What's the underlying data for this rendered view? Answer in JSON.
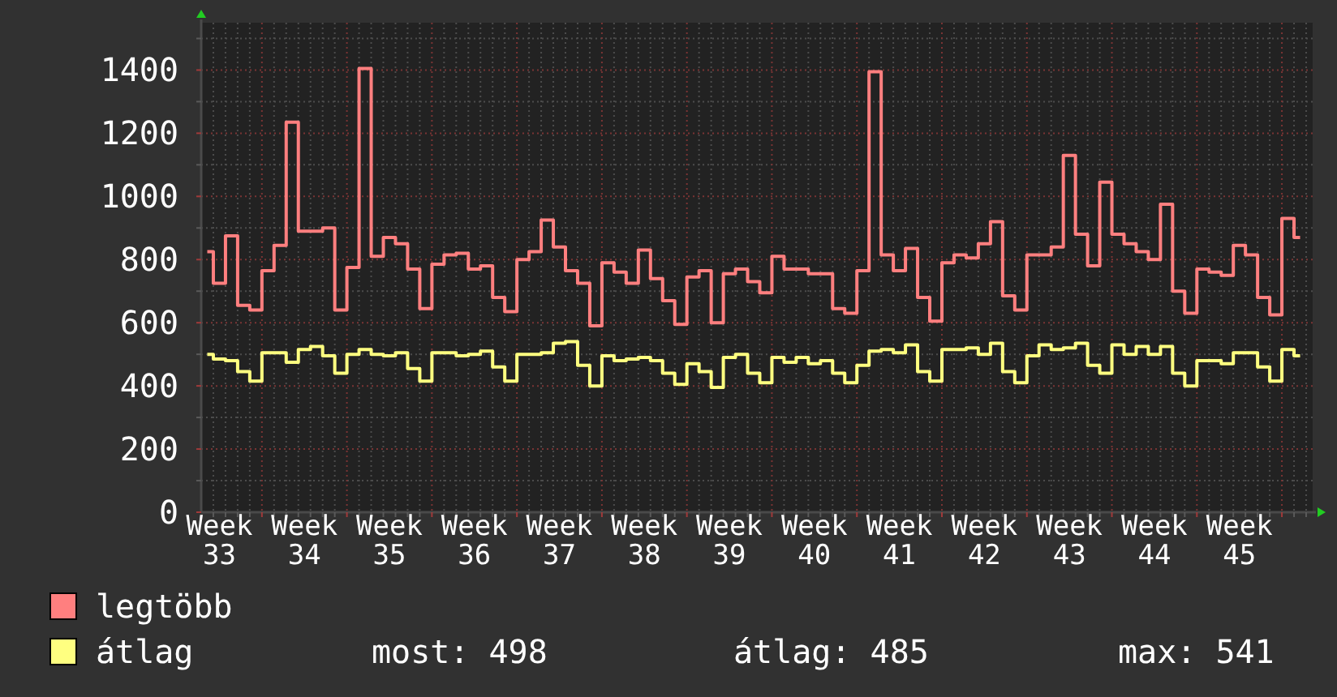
{
  "chart_data": {
    "type": "step",
    "ylim": [
      0,
      1550
    ],
    "categories": [
      null,
      "Week 33",
      null,
      null,
      null,
      null,
      null,
      null,
      "Week 34",
      null,
      null,
      null,
      null,
      null,
      null,
      "Week 35",
      null,
      null,
      null,
      null,
      null,
      null,
      "Week 36",
      null,
      null,
      null,
      null,
      null,
      null,
      "Week 37",
      null,
      null,
      null,
      null,
      null,
      null,
      "Week 38",
      null,
      null,
      null,
      null,
      null,
      null,
      "Week 39",
      null,
      null,
      null,
      null,
      null,
      null,
      "Week 40",
      null,
      null,
      null,
      null,
      null,
      null,
      "Week 41",
      null,
      null,
      null,
      null,
      null,
      null,
      "Week 42",
      null,
      null,
      null,
      null,
      null,
      null,
      "Week 43",
      null,
      null,
      null,
      null,
      null,
      null,
      "Week 44",
      null,
      null,
      null,
      null,
      null,
      null,
      "Week 45",
      null,
      null,
      null,
      null,
      null
    ],
    "yticks": [
      0,
      {
        "value": 100,
        "label": null
      },
      200,
      {
        "value": 300,
        "label": null
      },
      400,
      {
        "value": 500,
        "label": null
      },
      600,
      {
        "value": 700,
        "label": null
      },
      800,
      {
        "value": 900,
        "label": null
      },
      1000,
      {
        "value": 1100,
        "label": null
      },
      1200,
      {
        "value": 1300,
        "label": null
      },
      1400,
      {
        "value": 1500,
        "label": null
      }
    ],
    "grid": true,
    "legend": "bottom left",
    "series": [
      {
        "name": "legtöbb",
        "color": "#ff7f7f",
        "values": [
          825,
          725,
          875,
          655,
          640,
          765,
          845,
          1235,
          890,
          890,
          900,
          640,
          775,
          1405,
          810,
          870,
          850,
          770,
          645,
          785,
          815,
          820,
          770,
          780,
          680,
          635,
          800,
          825,
          925,
          840,
          765,
          725,
          590,
          790,
          760,
          725,
          830,
          740,
          670,
          595,
          745,
          765,
          600,
          755,
          770,
          730,
          695,
          810,
          770,
          770,
          755,
          755,
          645,
          630,
          765,
          1395,
          815,
          765,
          835,
          680,
          605,
          790,
          815,
          805,
          850,
          920,
          685,
          640,
          815,
          815,
          840,
          1130,
          880,
          780,
          1045,
          880,
          850,
          825,
          800,
          975,
          700,
          630,
          770,
          760,
          750,
          845,
          815,
          680,
          625,
          930,
          870
        ]
      },
      {
        "name": "átlag",
        "color": "#ffff80",
        "values": [
          500,
          485,
          480,
          445,
          415,
          505,
          505,
          475,
          515,
          525,
          495,
          440,
          500,
          515,
          500,
          495,
          505,
          455,
          415,
          505,
          505,
          495,
          500,
          510,
          460,
          415,
          500,
          500,
          505,
          535,
          540,
          465,
          400,
          495,
          480,
          485,
          490,
          480,
          440,
          405,
          470,
          445,
          395,
          490,
          500,
          440,
          410,
          490,
          475,
          490,
          470,
          480,
          440,
          410,
          465,
          510,
          515,
          505,
          530,
          445,
          415,
          515,
          515,
          520,
          500,
          535,
          445,
          410,
          495,
          530,
          515,
          520,
          535,
          465,
          440,
          530,
          500,
          525,
          500,
          525,
          440,
          400,
          480,
          480,
          470,
          505,
          505,
          460,
          415,
          515,
          495
        ]
      }
    ],
    "annotations": [
      "most: 498",
      "átlag: 485",
      "max: 541"
    ]
  }
}
